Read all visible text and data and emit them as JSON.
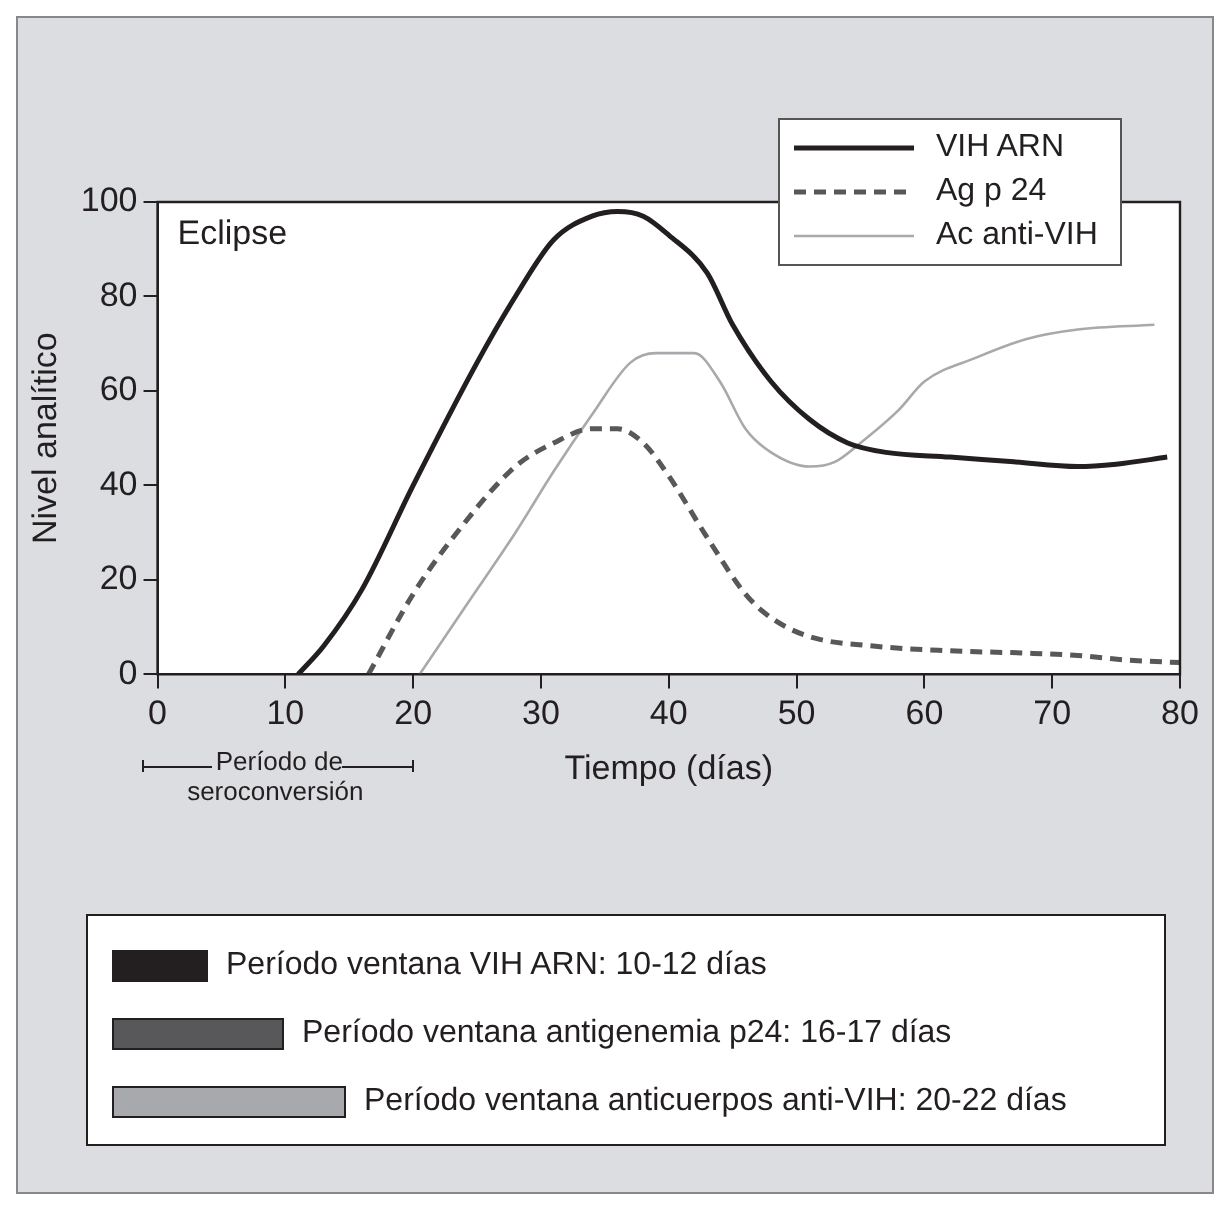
{
  "chart_data": {
    "type": "line",
    "xlabel": "Tiempo (días)",
    "ylabel": "Nivel analítico",
    "xlim": [
      0,
      80
    ],
    "xticks": [
      0,
      10,
      20,
      30,
      40,
      50,
      60,
      70,
      80
    ],
    "ylim": [
      0,
      100
    ],
    "yticks": [
      0,
      20,
      40,
      60,
      80,
      100
    ],
    "grid": false,
    "legend": "top right",
    "marker": "none",
    "series": [
      {
        "name": "VIH ARN",
        "color": "#231f20",
        "line_style": "solid",
        "x": [
          11,
          13,
          16,
          20,
          25,
          28,
          31,
          34,
          36,
          38,
          40,
          43,
          45,
          48,
          51,
          54,
          57,
          62,
          67,
          72,
          75,
          79
        ],
        "values": [
          0,
          6,
          18,
          40,
          66,
          80,
          92,
          97,
          98,
          97,
          93,
          85,
          74,
          62,
          54,
          49,
          47,
          46,
          45,
          44,
          44.5,
          46
        ]
      },
      {
        "name": "Ag p 24",
        "color": "#58585a",
        "line_style": "dashed",
        "x": [
          16.5,
          20,
          24,
          28,
          31,
          34,
          36,
          38,
          40,
          43,
          46,
          48,
          51,
          56,
          62,
          68,
          72,
          76,
          80
        ],
        "values": [
          0,
          17,
          32,
          44,
          49,
          52,
          52,
          49,
          42,
          29,
          17,
          12,
          8,
          6,
          5,
          4.5,
          4,
          3,
          2.5
        ]
      },
      {
        "name": "Ac anti-VIH",
        "color": "#a7a9ac",
        "line_style": "solid",
        "x": [
          20.5,
          24,
          28,
          31,
          34,
          37,
          39,
          42,
          44,
          46,
          48,
          51,
          53,
          55,
          58,
          60,
          64,
          68,
          72,
          78
        ],
        "values": [
          0,
          14,
          30,
          43,
          55,
          66,
          68,
          68,
          62,
          52,
          47,
          44,
          45,
          49,
          56,
          62,
          67,
          71,
          73,
          74
        ]
      }
    ],
    "annotations": [
      "Eclipse",
      "Período de seroconversión",
      "Período ventana VIH ARN: 10-12 días",
      "Período ventana antigenemia p24: 16-17 días",
      "Período ventana anticuerpos anti-VIH: 20-22 días"
    ]
  }
}
